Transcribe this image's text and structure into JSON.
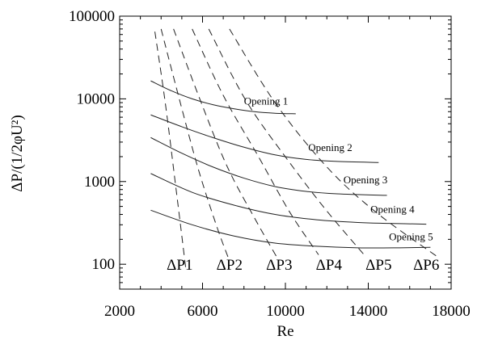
{
  "chart_data": {
    "type": "line",
    "x_scale": "linear",
    "y_scale": "log",
    "xlim": [
      2000,
      18000
    ],
    "ylim": [
      50,
      100000
    ],
    "xlabel": "Re",
    "ylabel": "ΔP/(1/2φU²)",
    "x_ticks": [
      {
        "value": 2000,
        "label": "2000"
      },
      {
        "value": 6000,
        "label": "6000"
      },
      {
        "value": 10000,
        "label": "10000"
      },
      {
        "value": 14000,
        "label": "14000"
      },
      {
        "value": 18000,
        "label": "18000"
      }
    ],
    "y_ticks": [
      {
        "value": 100,
        "label": "100"
      },
      {
        "value": 1000,
        "label": "1000"
      },
      {
        "value": 10000,
        "label": "10000"
      },
      {
        "value": 100000,
        "label": "100000"
      }
    ],
    "grid": false,
    "series": [
      {
        "name": "Opening 1",
        "style": "solid",
        "x": [
          3500,
          4500,
          5500,
          6500,
          7500,
          8500,
          9500,
          10500
        ],
        "y": [
          16500,
          12500,
          10000,
          8500,
          7600,
          7000,
          6700,
          6600
        ]
      },
      {
        "name": "Opening 2",
        "style": "solid",
        "x": [
          3500,
          5000,
          6500,
          8000,
          9500,
          11000,
          12500,
          14500
        ],
        "y": [
          6400,
          4600,
          3400,
          2600,
          2100,
          1850,
          1750,
          1700
        ]
      },
      {
        "name": "Opening 3",
        "style": "solid",
        "x": [
          3500,
          5000,
          6500,
          8000,
          9500,
          11000,
          12500,
          14900
        ],
        "y": [
          3400,
          2200,
          1500,
          1100,
          870,
          760,
          710,
          680
        ]
      },
      {
        "name": "Opening 4",
        "style": "solid",
        "x": [
          3500,
          5500,
          7500,
          9500,
          11500,
          13500,
          15000,
          16800
        ],
        "y": [
          1250,
          740,
          520,
          400,
          345,
          320,
          312,
          305
        ]
      },
      {
        "name": "Opening 5",
        "style": "solid",
        "x": [
          3500,
          5500,
          7500,
          9500,
          11500,
          13500,
          15500,
          17000
        ],
        "y": [
          450,
          300,
          220,
          180,
          165,
          158,
          158,
          160
        ]
      },
      {
        "name": "ΔP1",
        "style": "dashed",
        "x": [
          3700,
          4200,
          4700,
          5000,
          5200
        ],
        "y": [
          65000,
          9000,
          900,
          220,
          85
        ]
      },
      {
        "name": "ΔP2",
        "style": "dashed",
        "x": [
          4000,
          4900,
          5800,
          6700,
          7300
        ],
        "y": [
          70000,
          9500,
          1400,
          280,
          110
        ]
      },
      {
        "name": "ΔP3",
        "style": "dashed",
        "x": [
          4600,
          5900,
          7200,
          8600,
          9600
        ],
        "y": [
          70000,
          9500,
          1500,
          330,
          120
        ]
      },
      {
        "name": "ΔP4",
        "style": "dashed",
        "x": [
          5500,
          7000,
          8700,
          10200,
          11600
        ],
        "y": [
          70000,
          11000,
          2000,
          430,
          130
        ]
      },
      {
        "name": "ΔP5",
        "style": "dashed",
        "x": [
          6300,
          8100,
          10200,
          12000,
          13800
        ],
        "y": [
          70000,
          9500,
          1700,
          440,
          130
        ]
      },
      {
        "name": "ΔP6",
        "style": "dashed",
        "x": [
          7300,
          9500,
          12000,
          14400,
          17400
        ],
        "y": [
          70000,
          9000,
          1500,
          420,
          120
        ]
      }
    ],
    "curve_labels": [
      {
        "text": "Opening 1",
        "x": 8000,
        "y": 8500
      },
      {
        "text": "Opening 2",
        "x": 11100,
        "y": 2350
      },
      {
        "text": "Opening 3",
        "x": 12800,
        "y": 950
      },
      {
        "text": "Opening 4",
        "x": 14100,
        "y": 420
      },
      {
        "text": "Opening 5",
        "x": 15000,
        "y": 195
      }
    ],
    "dp_labels": [
      {
        "text": "ΔP1",
        "x": 4900,
        "y": 100
      },
      {
        "text": "ΔP2",
        "x": 7300,
        "y": 100
      },
      {
        "text": "ΔP3",
        "x": 9700,
        "y": 100
      },
      {
        "text": "ΔP4",
        "x": 12100,
        "y": 100
      },
      {
        "text": "ΔP5",
        "x": 14500,
        "y": 100
      },
      {
        "text": "ΔP6",
        "x": 16800,
        "y": 100
      }
    ]
  }
}
